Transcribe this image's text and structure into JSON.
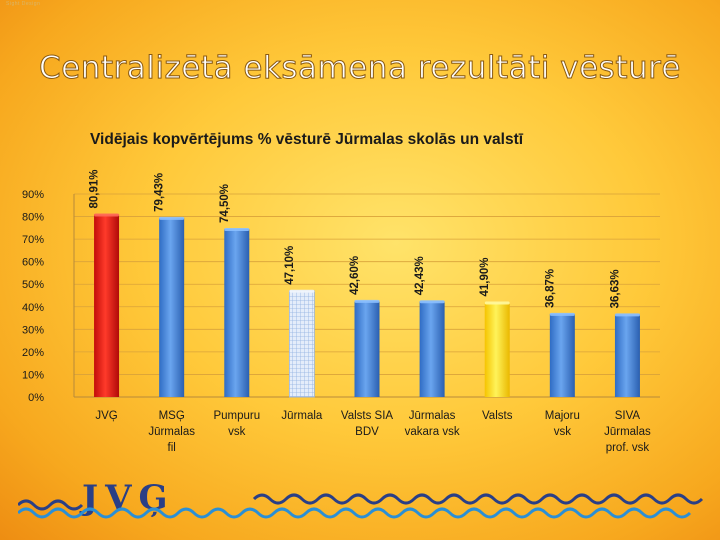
{
  "credit": "Sight Design",
  "slide_title": "Centralizētā eksāmena rezultāti vēsturē",
  "logo": {
    "text": "JVĢ"
  },
  "colors": {
    "highlight_red": "#e01a12",
    "highlight_yellow": "#ffe41a",
    "bar_blue": "#4a87d6",
    "bar_pattern": "#c7d8f2"
  },
  "chart_data": {
    "type": "bar",
    "title": "Vidējais kopvērtējums % vēsturē Jūrmalas skolās un valstī",
    "ylim": [
      0,
      90
    ],
    "yticks": [
      "0%",
      "10%",
      "20%",
      "30%",
      "40%",
      "50%",
      "60%",
      "70%",
      "80%",
      "90%"
    ],
    "grid": true,
    "categories": [
      [
        "JVĢ"
      ],
      [
        "MSĢ",
        "Jūrmalas",
        "fil"
      ],
      [
        "Pumpuru",
        "vsk"
      ],
      [
        "Jūrmala"
      ],
      [
        "Valsts SIA",
        "BDV"
      ],
      [
        "Jūrmalas",
        "vakara vsk"
      ],
      [
        "Valsts"
      ],
      [
        "Majoru",
        "vsk"
      ],
      [
        "SIVA",
        "Jūrmalas",
        "prof. vsk"
      ]
    ],
    "values": [
      80.91,
      79.43,
      74.5,
      47.1,
      42.6,
      42.43,
      41.9,
      36.87,
      36.63
    ],
    "labels": [
      "80,91%",
      "79,43%",
      "74,50%",
      "47,10%",
      "42,60%",
      "42,43%",
      "41,90%",
      "36,87%",
      "36,63%"
    ],
    "styles": [
      "red",
      "blue",
      "blue",
      "pattern",
      "blue",
      "blue",
      "yellow",
      "blue",
      "blue"
    ]
  }
}
